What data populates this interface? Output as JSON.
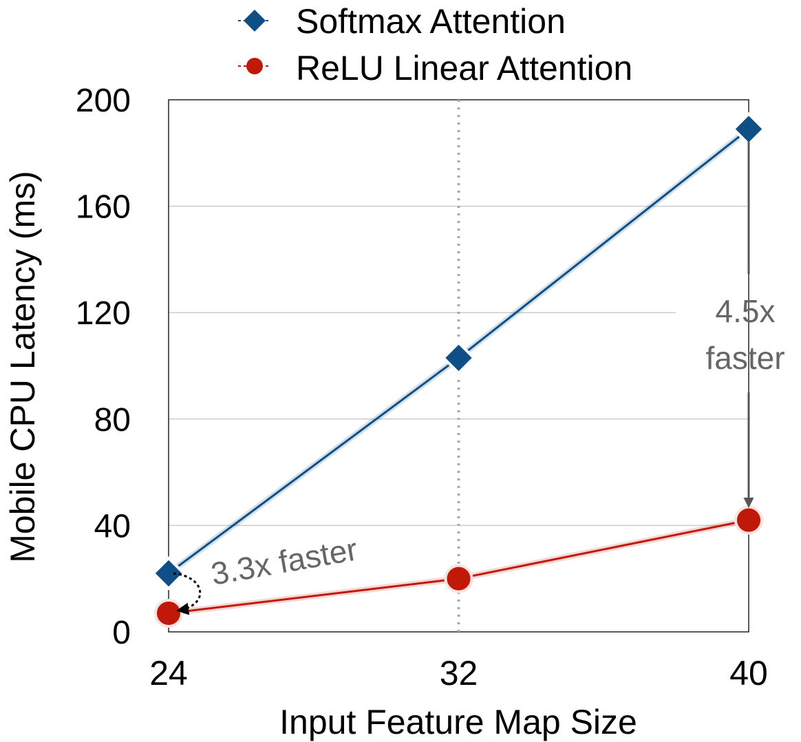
{
  "chart_data": {
    "type": "line",
    "title": "",
    "xlabel": "Input Feature Map Size",
    "ylabel": "Mobile CPU Latency (ms)",
    "x": [
      24,
      32,
      40
    ],
    "x_ticks": [
      "24",
      "32",
      "40"
    ],
    "ylim": [
      0,
      200
    ],
    "y_ticks": [
      0,
      40,
      80,
      120,
      160,
      200
    ],
    "grid": "horizontal",
    "legend_position": "top",
    "series": [
      {
        "name": "Softmax Attention",
        "values": [
          22,
          103,
          189
        ],
        "color": "#0d4f86",
        "marker": "diamond"
      },
      {
        "name": "ReLU Linear Attention",
        "values": [
          7,
          20,
          42
        ],
        "color": "#c0190a",
        "marker": "circle"
      }
    ],
    "annotations": [
      {
        "text": "3.3x faster"
      },
      {
        "text_line1": "4.5x",
        "text_line2": "faster"
      }
    ]
  }
}
